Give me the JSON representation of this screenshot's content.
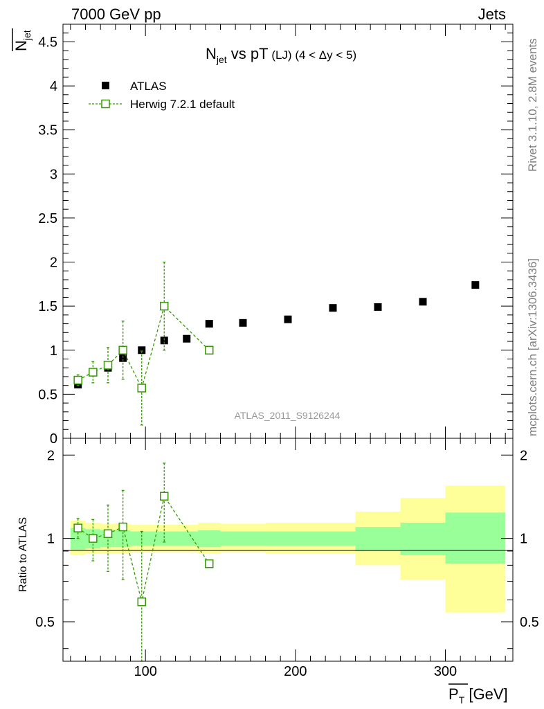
{
  "header": {
    "left": "7000 GeV pp",
    "right": "Jets"
  },
  "side_labels": {
    "rivet": "Rivet 3.1.10,  2.8M events",
    "mcplots": "mcplots.cern.ch [arXiv:1306.3436]"
  },
  "colors": {
    "data": "#000000",
    "mc": "#339900",
    "band_inner": "#99ff99",
    "band_outer": "#ffff99"
  },
  "chart_data": [
    {
      "panel": "main",
      "type": "scatter",
      "title_main": "N",
      "title_sub": "jet",
      "title_rest": " vs pT",
      "title_small": " (LJ) (4 < Δy < 5)",
      "ylabel_main": "N",
      "ylabel_sub": "jet",
      "ylim": [
        0,
        4.7
      ],
      "xlim": [
        45,
        345
      ],
      "yticks": [
        0,
        0.5,
        1,
        1.5,
        2,
        2.5,
        3,
        3.5,
        4,
        4.5
      ],
      "ytick_labels": [
        "0",
        "0.5",
        "1",
        "1.5",
        "2",
        "2.5",
        "3",
        "3.5",
        "4",
        "4.5"
      ],
      "legend_position": "top-left",
      "watermark": "ATLAS_2011_S9126244",
      "series": [
        {
          "name": "ATLAS",
          "x": [
            55,
            65,
            75,
            85,
            97.5,
            112.5,
            127.5,
            142.5,
            165,
            195,
            225,
            255,
            285,
            320
          ],
          "y": [
            0.61,
            0.75,
            0.8,
            0.91,
            1.0,
            1.11,
            1.13,
            1.3,
            1.31,
            1.35,
            1.48,
            1.49,
            1.55,
            1.74
          ]
        },
        {
          "name": "Herwig 7.2.1 default",
          "x": [
            55,
            65,
            75,
            85,
            97.5,
            112.5,
            142.5
          ],
          "y": [
            0.66,
            0.75,
            0.83,
            1.0,
            0.57,
            1.5,
            1.0
          ],
          "yerr": [
            0.06,
            0.12,
            0.2,
            0.33,
            0.42,
            0.5,
            0.0
          ]
        }
      ]
    },
    {
      "panel": "ratio",
      "type": "scatter",
      "ylabel": "Ratio to ATLAS",
      "ylim": [
        0.36,
        2.3
      ],
      "yticks": [
        0.5,
        1,
        2
      ],
      "ytick_labels": [
        "0.5",
        "1",
        "2"
      ],
      "xlim": [
        45,
        345
      ],
      "xticks": [
        100,
        200,
        300
      ],
      "xtick_labels": [
        "100",
        "200",
        "300"
      ],
      "xlabel_main": "P",
      "xlabel_sub": "T",
      "xlabel_unit": " [GeV]",
      "bands": {
        "edges": [
          50,
          60,
          70,
          80,
          90,
          105,
          120,
          135,
          150,
          180,
          210,
          240,
          270,
          300,
          340
        ],
        "inner_lo": [
          0.91,
          0.92,
          0.93,
          0.93,
          0.94,
          0.94,
          0.94,
          0.93,
          0.94,
          0.94,
          0.94,
          0.9,
          0.87,
          0.81
        ],
        "inner_hi": [
          1.09,
          1.08,
          1.07,
          1.07,
          1.06,
          1.06,
          1.06,
          1.07,
          1.06,
          1.06,
          1.06,
          1.1,
          1.14,
          1.24
        ],
        "outer_lo": [
          0.87,
          0.88,
          0.88,
          0.88,
          0.89,
          0.89,
          0.89,
          0.88,
          0.89,
          0.88,
          0.88,
          0.8,
          0.71,
          0.54
        ],
        "outer_hi": [
          1.16,
          1.14,
          1.13,
          1.13,
          1.12,
          1.12,
          1.12,
          1.14,
          1.13,
          1.14,
          1.14,
          1.25,
          1.4,
          1.55
        ]
      },
      "series": [
        {
          "name": "Herwig 7.2.1 default / ATLAS",
          "x": [
            55,
            65,
            75,
            85,
            97.5,
            112.5,
            142.5
          ],
          "y": [
            1.09,
            1.0,
            1.04,
            1.1,
            0.59,
            1.42,
            0.81
          ],
          "yerr": [
            0.09,
            0.17,
            0.28,
            0.39,
            0.47,
            0.45,
            0.0
          ]
        }
      ]
    }
  ]
}
